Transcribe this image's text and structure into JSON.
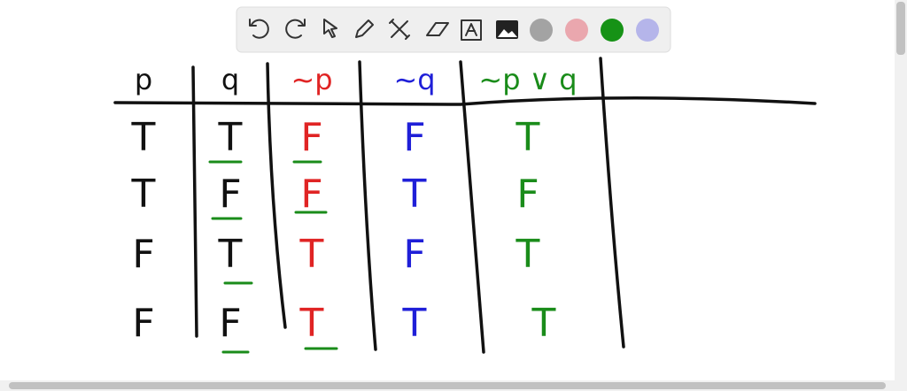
{
  "table": {
    "header": [
      "p",
      "q",
      "~p",
      "~q",
      "~p ∨ q"
    ],
    "rows": [
      [
        "T",
        "T",
        "F",
        "F",
        "T"
      ],
      [
        "T",
        "F",
        "F",
        "T",
        "F"
      ],
      [
        "F",
        "T",
        "T",
        "F",
        "T"
      ],
      [
        "F",
        "F",
        "T",
        "T",
        "T"
      ]
    ]
  }
}
